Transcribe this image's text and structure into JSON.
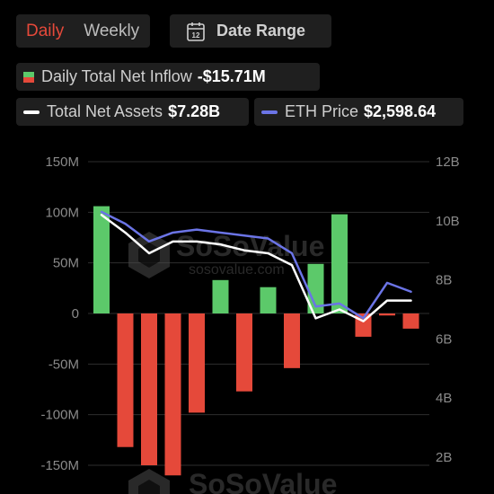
{
  "tabs": {
    "daily": "Daily",
    "weekly": "Weekly"
  },
  "date_range": {
    "label": "Date Range",
    "icon_number": "12"
  },
  "legend": {
    "inflow": {
      "label": "Daily Total Net Inflow",
      "value": "-$15.71M"
    },
    "assets": {
      "label": "Total Net Assets",
      "value": "$7.28B",
      "color": "#ffffff"
    },
    "price": {
      "label": "ETH Price",
      "value": "$2,598.64",
      "color": "#6b74e6"
    }
  },
  "colors": {
    "positive": "#5cc96a",
    "negative": "#e5493a",
    "grid": "#2e2e2e"
  },
  "watermark": {
    "main": "SoSoValue",
    "sub": "sosovalue.com"
  },
  "chart_data": {
    "type": "bar",
    "bars": {
      "values": [
        106,
        -132,
        -150,
        -160,
        -98,
        33,
        -77,
        26,
        -54,
        49,
        98,
        -23,
        -2,
        -15
      ]
    },
    "left_axis": {
      "ticks": [
        "150M",
        "100M",
        "50M",
        "0",
        "-50M",
        "-100M",
        "-150M"
      ],
      "tick_values": [
        150,
        100,
        50,
        0,
        -50,
        -100,
        -150
      ],
      "ylim": [
        -165,
        150
      ]
    },
    "right_axis": {
      "ticks": [
        "12B",
        "10B",
        "8B",
        "6B",
        "4B",
        "2B"
      ],
      "tick_values": [
        12,
        10,
        8,
        6,
        4,
        2
      ],
      "ylim": [
        1.5,
        12
      ]
    },
    "series": [
      {
        "name": "Total Net Assets",
        "axis": "right",
        "values": [
          10.2,
          9.6,
          8.9,
          9.3,
          9.3,
          9.2,
          9.0,
          8.9,
          8.5,
          6.7,
          7.0,
          6.6,
          7.3,
          7.3
        ]
      },
      {
        "name": "ETH Price",
        "axis": "right",
        "values": [
          10.3,
          9.9,
          9.3,
          9.6,
          9.7,
          9.6,
          9.5,
          9.4,
          8.9,
          7.1,
          7.2,
          6.7,
          7.9,
          7.6
        ]
      }
    ]
  }
}
